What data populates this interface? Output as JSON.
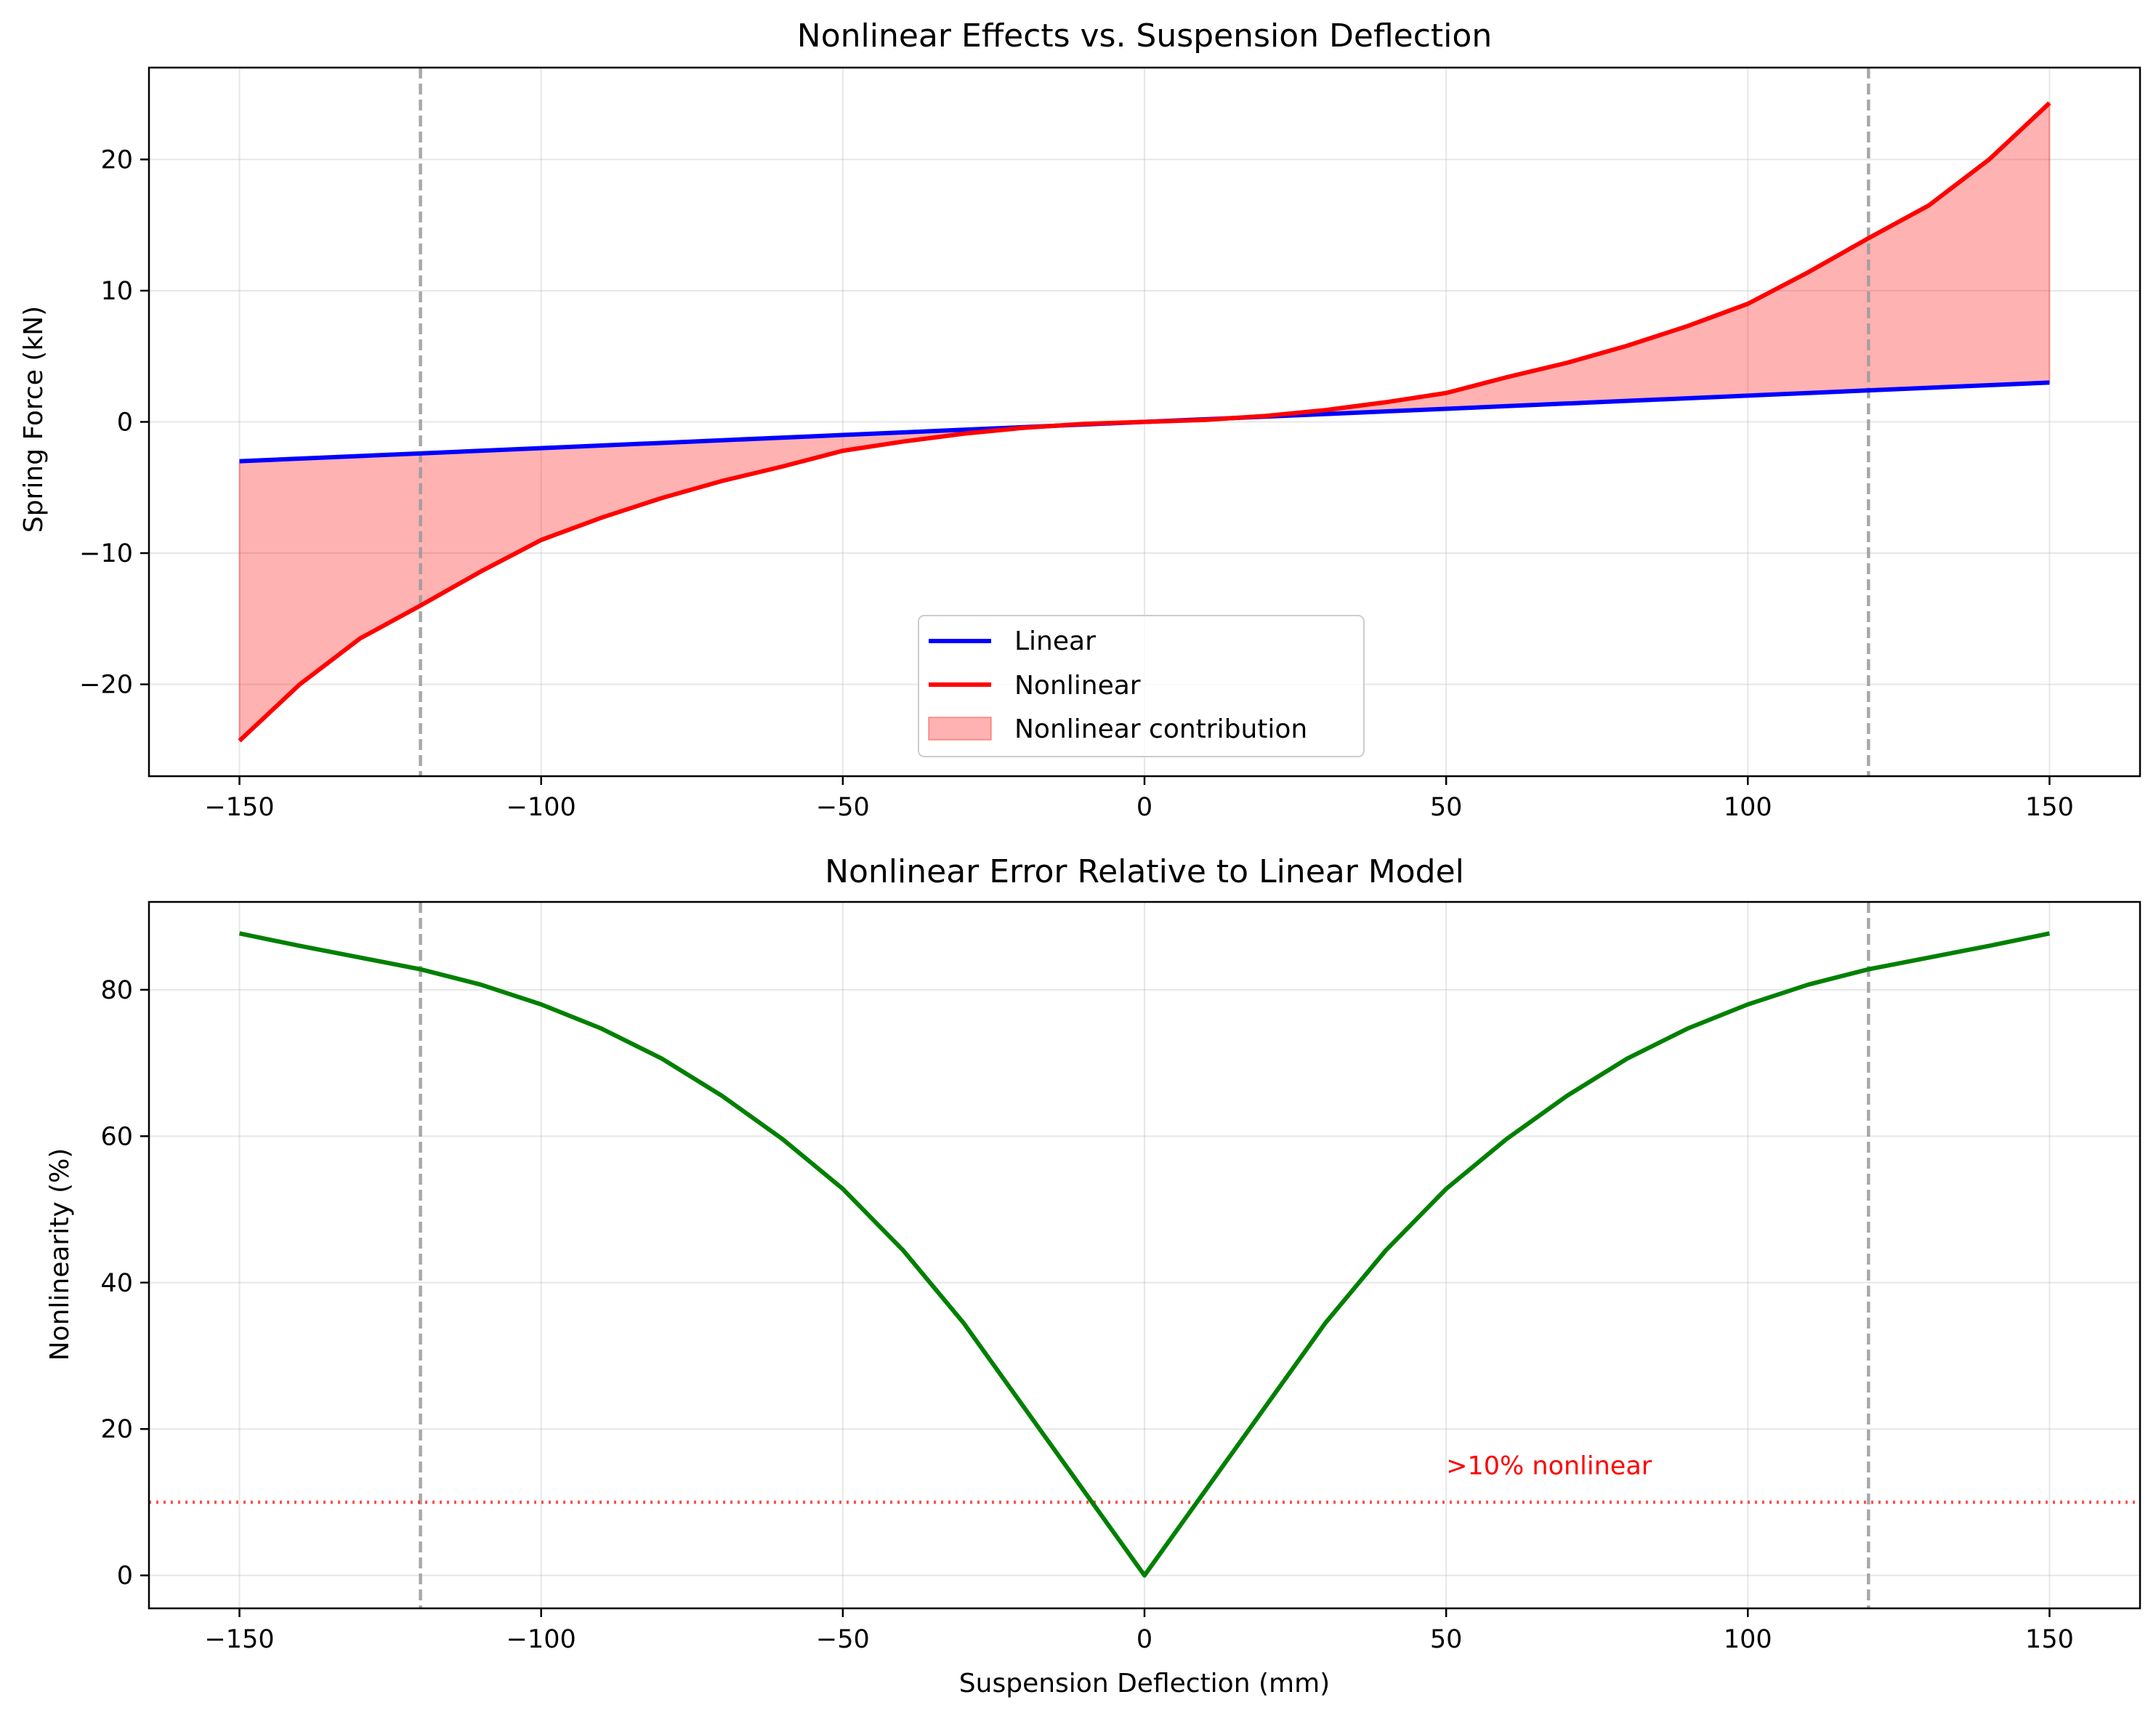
{
  "chart_data": [
    {
      "type": "line",
      "title": "Nonlinear Effects vs. Suspension Deflection",
      "xlabel": "",
      "ylabel": "Spring Force (kN)",
      "xlim": [
        -165,
        165
      ],
      "ylim": [
        -27,
        27
      ],
      "xticks": [
        -150,
        -100,
        -50,
        0,
        50,
        100,
        150
      ],
      "xtick_labels": [
        "−150",
        "−100",
        "−50",
        "0",
        "50",
        "100",
        "150"
      ],
      "yticks": [
        -20,
        -10,
        0,
        10,
        20
      ],
      "ytick_labels": [
        "−20",
        "−10",
        "0",
        "10",
        "20"
      ],
      "grid": true,
      "legend_position": "lower-center",
      "reference_lines": [
        {
          "orientation": "vertical",
          "x": -120,
          "style": "dashed",
          "color": "#999999"
        },
        {
          "orientation": "vertical",
          "x": 120,
          "style": "dashed",
          "color": "#999999"
        }
      ],
      "series": [
        {
          "name": "Linear",
          "color": "#0000ff",
          "x": [
            -150,
            -120,
            -100,
            -75,
            -50,
            -25,
            0,
            25,
            50,
            75,
            100,
            120,
            150
          ],
          "y": [
            -3.0,
            -2.4,
            -2.0,
            -1.5,
            -1.0,
            -0.5,
            0.0,
            0.5,
            1.0,
            1.5,
            2.0,
            2.4,
            3.0
          ]
        },
        {
          "name": "Nonlinear",
          "color": "#ff0000",
          "x": [
            -150,
            -140,
            -130,
            -120,
            -110,
            -100,
            -90,
            -80,
            -70,
            -60,
            -50,
            -40,
            -30,
            -20,
            -10,
            0,
            10,
            20,
            30,
            40,
            50,
            60,
            70,
            80,
            90,
            100,
            110,
            120,
            130,
            140,
            150
          ],
          "y": [
            -24.3,
            -20.0,
            -16.5,
            -14.0,
            -11.4,
            -9.0,
            -7.3,
            -5.8,
            -4.5,
            -3.4,
            -2.2,
            -1.5,
            -0.9,
            -0.45,
            -0.15,
            0.0,
            0.15,
            0.45,
            0.9,
            1.5,
            2.2,
            3.4,
            4.5,
            5.8,
            7.3,
            9.0,
            11.4,
            14.0,
            16.5,
            20.0,
            24.3
          ]
        }
      ],
      "fill_between": {
        "name": "Nonlinear contribution",
        "between": [
          "Linear",
          "Nonlinear"
        ],
        "color": "#ff0000",
        "alpha": 0.3
      }
    },
    {
      "type": "line",
      "title": "Nonlinear Error Relative to Linear Model",
      "xlabel": "Suspension Deflection (mm)",
      "ylabel": "Nonlinearity (%)",
      "xlim": [
        -165,
        165
      ],
      "ylim": [
        -4.5,
        92
      ],
      "xticks": [
        -150,
        -100,
        -50,
        0,
        50,
        100,
        150
      ],
      "xtick_labels": [
        "−150",
        "−100",
        "−50",
        "0",
        "50",
        "100",
        "150"
      ],
      "yticks": [
        0,
        20,
        40,
        60,
        80
      ],
      "ytick_labels": [
        "0",
        "20",
        "40",
        "60",
        "80"
      ],
      "grid": true,
      "reference_lines": [
        {
          "orientation": "vertical",
          "x": -120,
          "style": "dashed",
          "color": "#999999"
        },
        {
          "orientation": "vertical",
          "x": 120,
          "style": "dashed",
          "color": "#999999"
        },
        {
          "orientation": "horizontal",
          "y": 10,
          "style": "dotted",
          "color": "#ff0000"
        }
      ],
      "annotations": [
        {
          "text": ">10% nonlinear",
          "x": 50,
          "y": 15,
          "color": "#ff0000"
        }
      ],
      "series": [
        {
          "name": "",
          "color": "#008000",
          "x": [
            -150,
            -140,
            -130,
            -120,
            -110,
            -100,
            -90,
            -80,
            -70,
            -60,
            -50,
            -40,
            -30,
            -20,
            -10,
            0,
            10,
            20,
            30,
            40,
            50,
            60,
            70,
            80,
            90,
            100,
            110,
            120,
            130,
            140,
            150
          ],
          "y": [
            87.7,
            86.0,
            84.4,
            82.8,
            80.7,
            78.0,
            74.7,
            70.6,
            65.5,
            59.6,
            52.8,
            44.4,
            34.5,
            23.0,
            11.5,
            0.0,
            11.5,
            23.0,
            34.5,
            44.4,
            52.8,
            59.6,
            65.5,
            70.6,
            74.7,
            78.0,
            80.7,
            82.8,
            84.4,
            86.0,
            87.7
          ]
        }
      ]
    }
  ]
}
